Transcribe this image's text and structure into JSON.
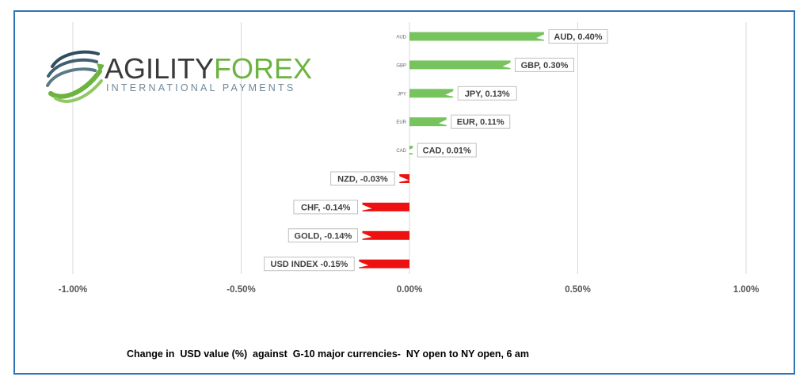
{
  "logo": {
    "word_part1": "AGILITY",
    "word_part2": "FOREX",
    "subtitle": "INTERNATIONAL PAYMENTS",
    "colors": {
      "dark": "#3a3a3a",
      "green": "#6cb33f",
      "blue_grey": "#6d8a9a"
    }
  },
  "caption": "Change in  USD value (%)  against  G-10 major currencies-  NY open to NY open, 6 am",
  "colors": {
    "positive": "#77c35e",
    "negative": "#ee1111",
    "frame": "#2e75b6",
    "grid": "#d9d9d9"
  },
  "chart_data": {
    "type": "bar",
    "orientation": "horizontal",
    "categories": [
      "AUD",
      "GBP",
      "JPY",
      "EUR",
      "CAD",
      "NZD",
      "CHF",
      "GOLD",
      "USD INDEX"
    ],
    "values": [
      0.4,
      0.3,
      0.13,
      0.11,
      0.01,
      -0.03,
      -0.14,
      -0.14,
      -0.15
    ],
    "data_labels": [
      "AUD, 0.40%",
      "GBP, 0.30%",
      "JPY, 0.13%",
      "EUR, 0.11%",
      "CAD, 0.01%",
      "NZD, -0.03%",
      "CHF, -0.14%",
      "GOLD, -0.14%",
      "USD INDEX -0.15%"
    ],
    "category_axis_labels": [
      "AUD",
      "GBP",
      "JPY",
      "EUR",
      "CAD",
      "",
      "",
      "",
      ""
    ],
    "xlim": [
      -1.0,
      1.0
    ],
    "xticks": [
      -1.0,
      -0.5,
      0.0,
      0.5,
      1.0
    ],
    "xtick_labels": [
      "-1.00%",
      "-0.50%",
      "0.00%",
      "0.50%",
      "1.00%"
    ],
    "grid": true,
    "legend": false
  }
}
